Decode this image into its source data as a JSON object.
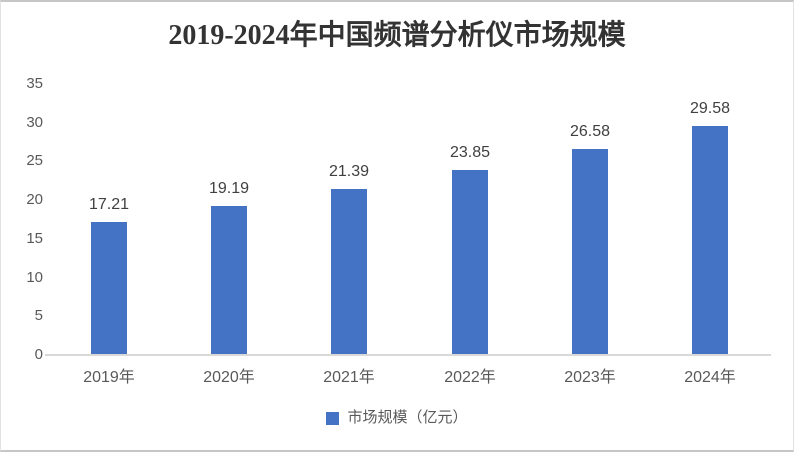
{
  "chart_data": {
    "type": "bar",
    "title": "2019-2024年中国频谱分析仪市场规模",
    "categories": [
      "2019年",
      "2020年",
      "2021年",
      "2022年",
      "2023年",
      "2024年"
    ],
    "values": [
      17.21,
      19.19,
      21.39,
      23.85,
      26.58,
      29.58
    ],
    "data_labels": [
      "17.21",
      "19.19",
      "21.39",
      "23.85",
      "26.58",
      "29.58"
    ],
    "series": [
      {
        "name": "市场规模（亿元）",
        "values": [
          17.21,
          19.19,
          21.39,
          23.85,
          26.58,
          29.58
        ]
      }
    ],
    "xlabel": "",
    "ylabel": "",
    "ylim": [
      0,
      35
    ],
    "ytick_step": 5,
    "yticks": [
      0,
      5,
      10,
      15,
      20,
      25,
      30,
      35
    ],
    "grid": false,
    "legend_position": "bottom",
    "bar_color": "#4472C4"
  },
  "legend": {
    "label": "市场规模（亿元）",
    "swatch_color": "#4472C4"
  },
  "colors": {
    "bar": "#4472C4",
    "axis_text": "#595959",
    "data_label_text": "#404040",
    "title_text": "#333333",
    "axis_line": "#d9d9d9",
    "frame_border": "#c6c6c6"
  }
}
